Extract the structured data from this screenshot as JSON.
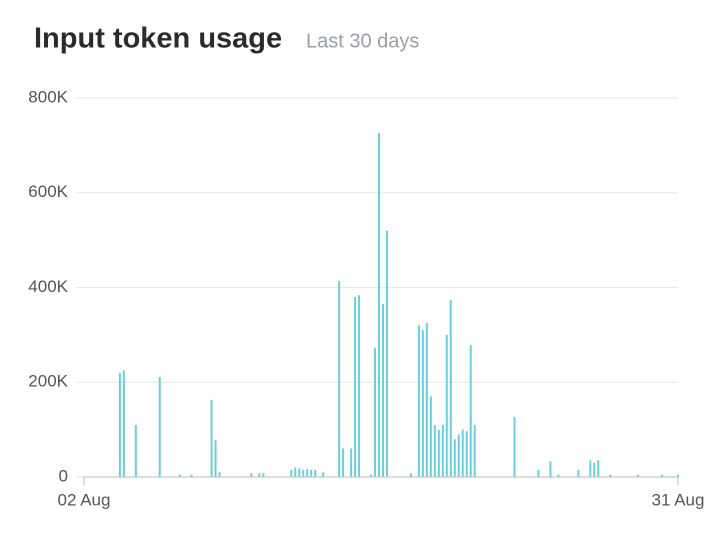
{
  "chart_data": {
    "type": "bar",
    "title": "Input token usage",
    "subtitle": "Last 30 days",
    "categories": [
      "02 Aug",
      null,
      null,
      null,
      null,
      null,
      null,
      null,
      null,
      null,
      null,
      null,
      null,
      null,
      null,
      null,
      null,
      null,
      null,
      null,
      null,
      null,
      null,
      null,
      null,
      null,
      null,
      null,
      null,
      null,
      null,
      null,
      null,
      null,
      null,
      null,
      null,
      null,
      null,
      null,
      null,
      null,
      null,
      null,
      null,
      null,
      null,
      null,
      null,
      null,
      null,
      null,
      null,
      null,
      null,
      null,
      null,
      null,
      null,
      null,
      null,
      null,
      null,
      null,
      null,
      null,
      null,
      null,
      null,
      null,
      null,
      null,
      null,
      null,
      null,
      null,
      null,
      null,
      null,
      null,
      null,
      null,
      null,
      null,
      null,
      null,
      null,
      null,
      null,
      null,
      null,
      null,
      null,
      null,
      null,
      null,
      null,
      null,
      null,
      null,
      null,
      null,
      null,
      null,
      null,
      null,
      null,
      null,
      null,
      null,
      null,
      null,
      null,
      null,
      null,
      null,
      null,
      null,
      null,
      null,
      null,
      null,
      null,
      null,
      null,
      null,
      null,
      null,
      null,
      null,
      null,
      null,
      null,
      null,
      null,
      null,
      null,
      null,
      null,
      null,
      null,
      null,
      null,
      null,
      null,
      null,
      null,
      null,
      null,
      "31 Aug"
    ],
    "values": [
      0,
      0,
      0,
      0,
      0,
      0,
      0,
      0,
      0,
      220000,
      225000,
      0,
      0,
      110000,
      0,
      0,
      0,
      0,
      0,
      211000,
      0,
      0,
      0,
      0,
      5000,
      0,
      0,
      5000,
      0,
      0,
      0,
      0,
      163000,
      78000,
      10000,
      0,
      0,
      0,
      0,
      0,
      0,
      0,
      8000,
      0,
      8000,
      8000,
      0,
      0,
      0,
      0,
      0,
      0,
      15000,
      20000,
      18000,
      15000,
      17000,
      15000,
      15000,
      0,
      10000,
      0,
      0,
      0,
      414000,
      60000,
      0,
      60000,
      380000,
      384000,
      0,
      0,
      5000,
      273000,
      726000,
      365000,
      520000,
      0,
      0,
      0,
      0,
      0,
      8000,
      0,
      320000,
      310000,
      325000,
      170000,
      110000,
      100000,
      110000,
      300000,
      373000,
      80000,
      90000,
      100000,
      97000,
      278000,
      110000,
      0,
      0,
      0,
      0,
      0,
      0,
      0,
      0,
      0,
      127000,
      0,
      0,
      0,
      0,
      0,
      15000,
      0,
      0,
      33000,
      0,
      5000,
      0,
      0,
      0,
      0,
      15000,
      0,
      0,
      35000,
      30000,
      35000,
      0,
      0,
      5000,
      0,
      0,
      0,
      0,
      0,
      0,
      5000,
      0,
      0,
      0,
      0,
      0,
      5000,
      0,
      0,
      0,
      5000
    ],
    "color": "#6dcfd6",
    "ylim": [
      0,
      800000
    ],
    "yticks": [
      0,
      {
        "value": 200000,
        "label": "200K"
      },
      {
        "value": 400000,
        "label": "400K"
      },
      {
        "value": 600000,
        "label": "600K"
      },
      {
        "value": 800000,
        "label": "800K"
      }
    ],
    "grid": true
  }
}
